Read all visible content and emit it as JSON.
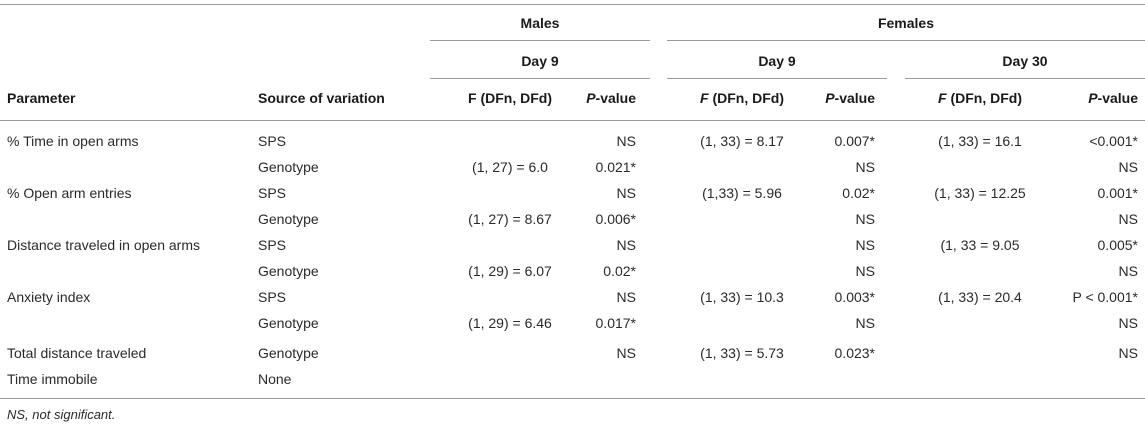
{
  "header": {
    "group_males": "Males",
    "group_females": "Females",
    "day_males": "Day 9",
    "day_females_1": "Day 9",
    "day_females_2": "Day 30",
    "col_parameter": "Parameter",
    "col_source": "Source of variation",
    "f_label_m_pre": "F",
    "f_label_m_post": " (DFn, DFd)",
    "p_label_m_pre": "P",
    "p_label_m_post": "-value",
    "f_label_f9_pre": "F",
    "f_label_f9_post": " (DFn, DFd)",
    "p_label_f9_pre": "P",
    "p_label_f9_post": "-value",
    "f_label_f30_pre": "F",
    "f_label_f30_post": " (DFn, DFd)",
    "p_label_f30_pre": "P",
    "p_label_f30_post": "-value"
  },
  "rows": [
    {
      "parameter": "% Time in open arms",
      "source": "SPS",
      "m_f": "",
      "m_p": "NS",
      "f9_f": "(1, 33) = 8.17",
      "f9_p": "0.007*",
      "f30_f": "(1, 33) = 16.1",
      "f30_p": "<0.001*"
    },
    {
      "parameter": "",
      "source": "Genotype",
      "m_f": "(1, 27) = 6.0",
      "m_p": "0.021*",
      "f9_f": "",
      "f9_p": "NS",
      "f30_f": "",
      "f30_p": "NS"
    },
    {
      "parameter": "% Open arm entries",
      "source": "SPS",
      "m_f": "",
      "m_p": "NS",
      "f9_f": "(1,33) = 5.96",
      "f9_p": "0.02*",
      "f30_f": "(1, 33) = 12.25",
      "f30_p": "0.001*"
    },
    {
      "parameter": "",
      "source": "Genotype",
      "m_f": "(1, 27) = 8.67",
      "m_p": "0.006*",
      "f9_f": "",
      "f9_p": "NS",
      "f30_f": "",
      "f30_p": "NS"
    },
    {
      "parameter": "Distance traveled in open arms",
      "source": "SPS",
      "m_f": "",
      "m_p": "NS",
      "f9_f": "",
      "f9_p": "NS",
      "f30_f": "(1, 33 = 9.05",
      "f30_p": "0.005*"
    },
    {
      "parameter": "",
      "source": "Genotype",
      "m_f": "(1, 29) = 6.07",
      "m_p": "0.02*",
      "f9_f": "",
      "f9_p": "NS",
      "f30_f": "",
      "f30_p": "NS"
    },
    {
      "parameter": "Anxiety index",
      "source": "SPS",
      "m_f": "",
      "m_p": "NS",
      "f9_f": "(1, 33) = 10.3",
      "f9_p": "0.003*",
      "f30_f": "(1, 33) = 20.4",
      "f30_p": "P < 0.001*"
    },
    {
      "parameter": "",
      "source": "Genotype",
      "m_f": "(1, 29) = 6.46",
      "m_p": "0.017*",
      "f9_f": "",
      "f9_p": "NS",
      "f30_f": "",
      "f30_p": "NS"
    },
    {
      "parameter": "Total distance traveled",
      "source": "Genotype",
      "m_f": "",
      "m_p": "NS",
      "f9_f": "(1, 33) = 5.73",
      "f9_p": "0.023*",
      "f30_f": "",
      "f30_p": "NS"
    },
    {
      "parameter": "Time immobile",
      "source": "None",
      "m_f": "",
      "m_p": "",
      "f9_f": "",
      "f9_p": "",
      "f30_f": "",
      "f30_p": ""
    }
  ],
  "footnote": "NS, not significant."
}
